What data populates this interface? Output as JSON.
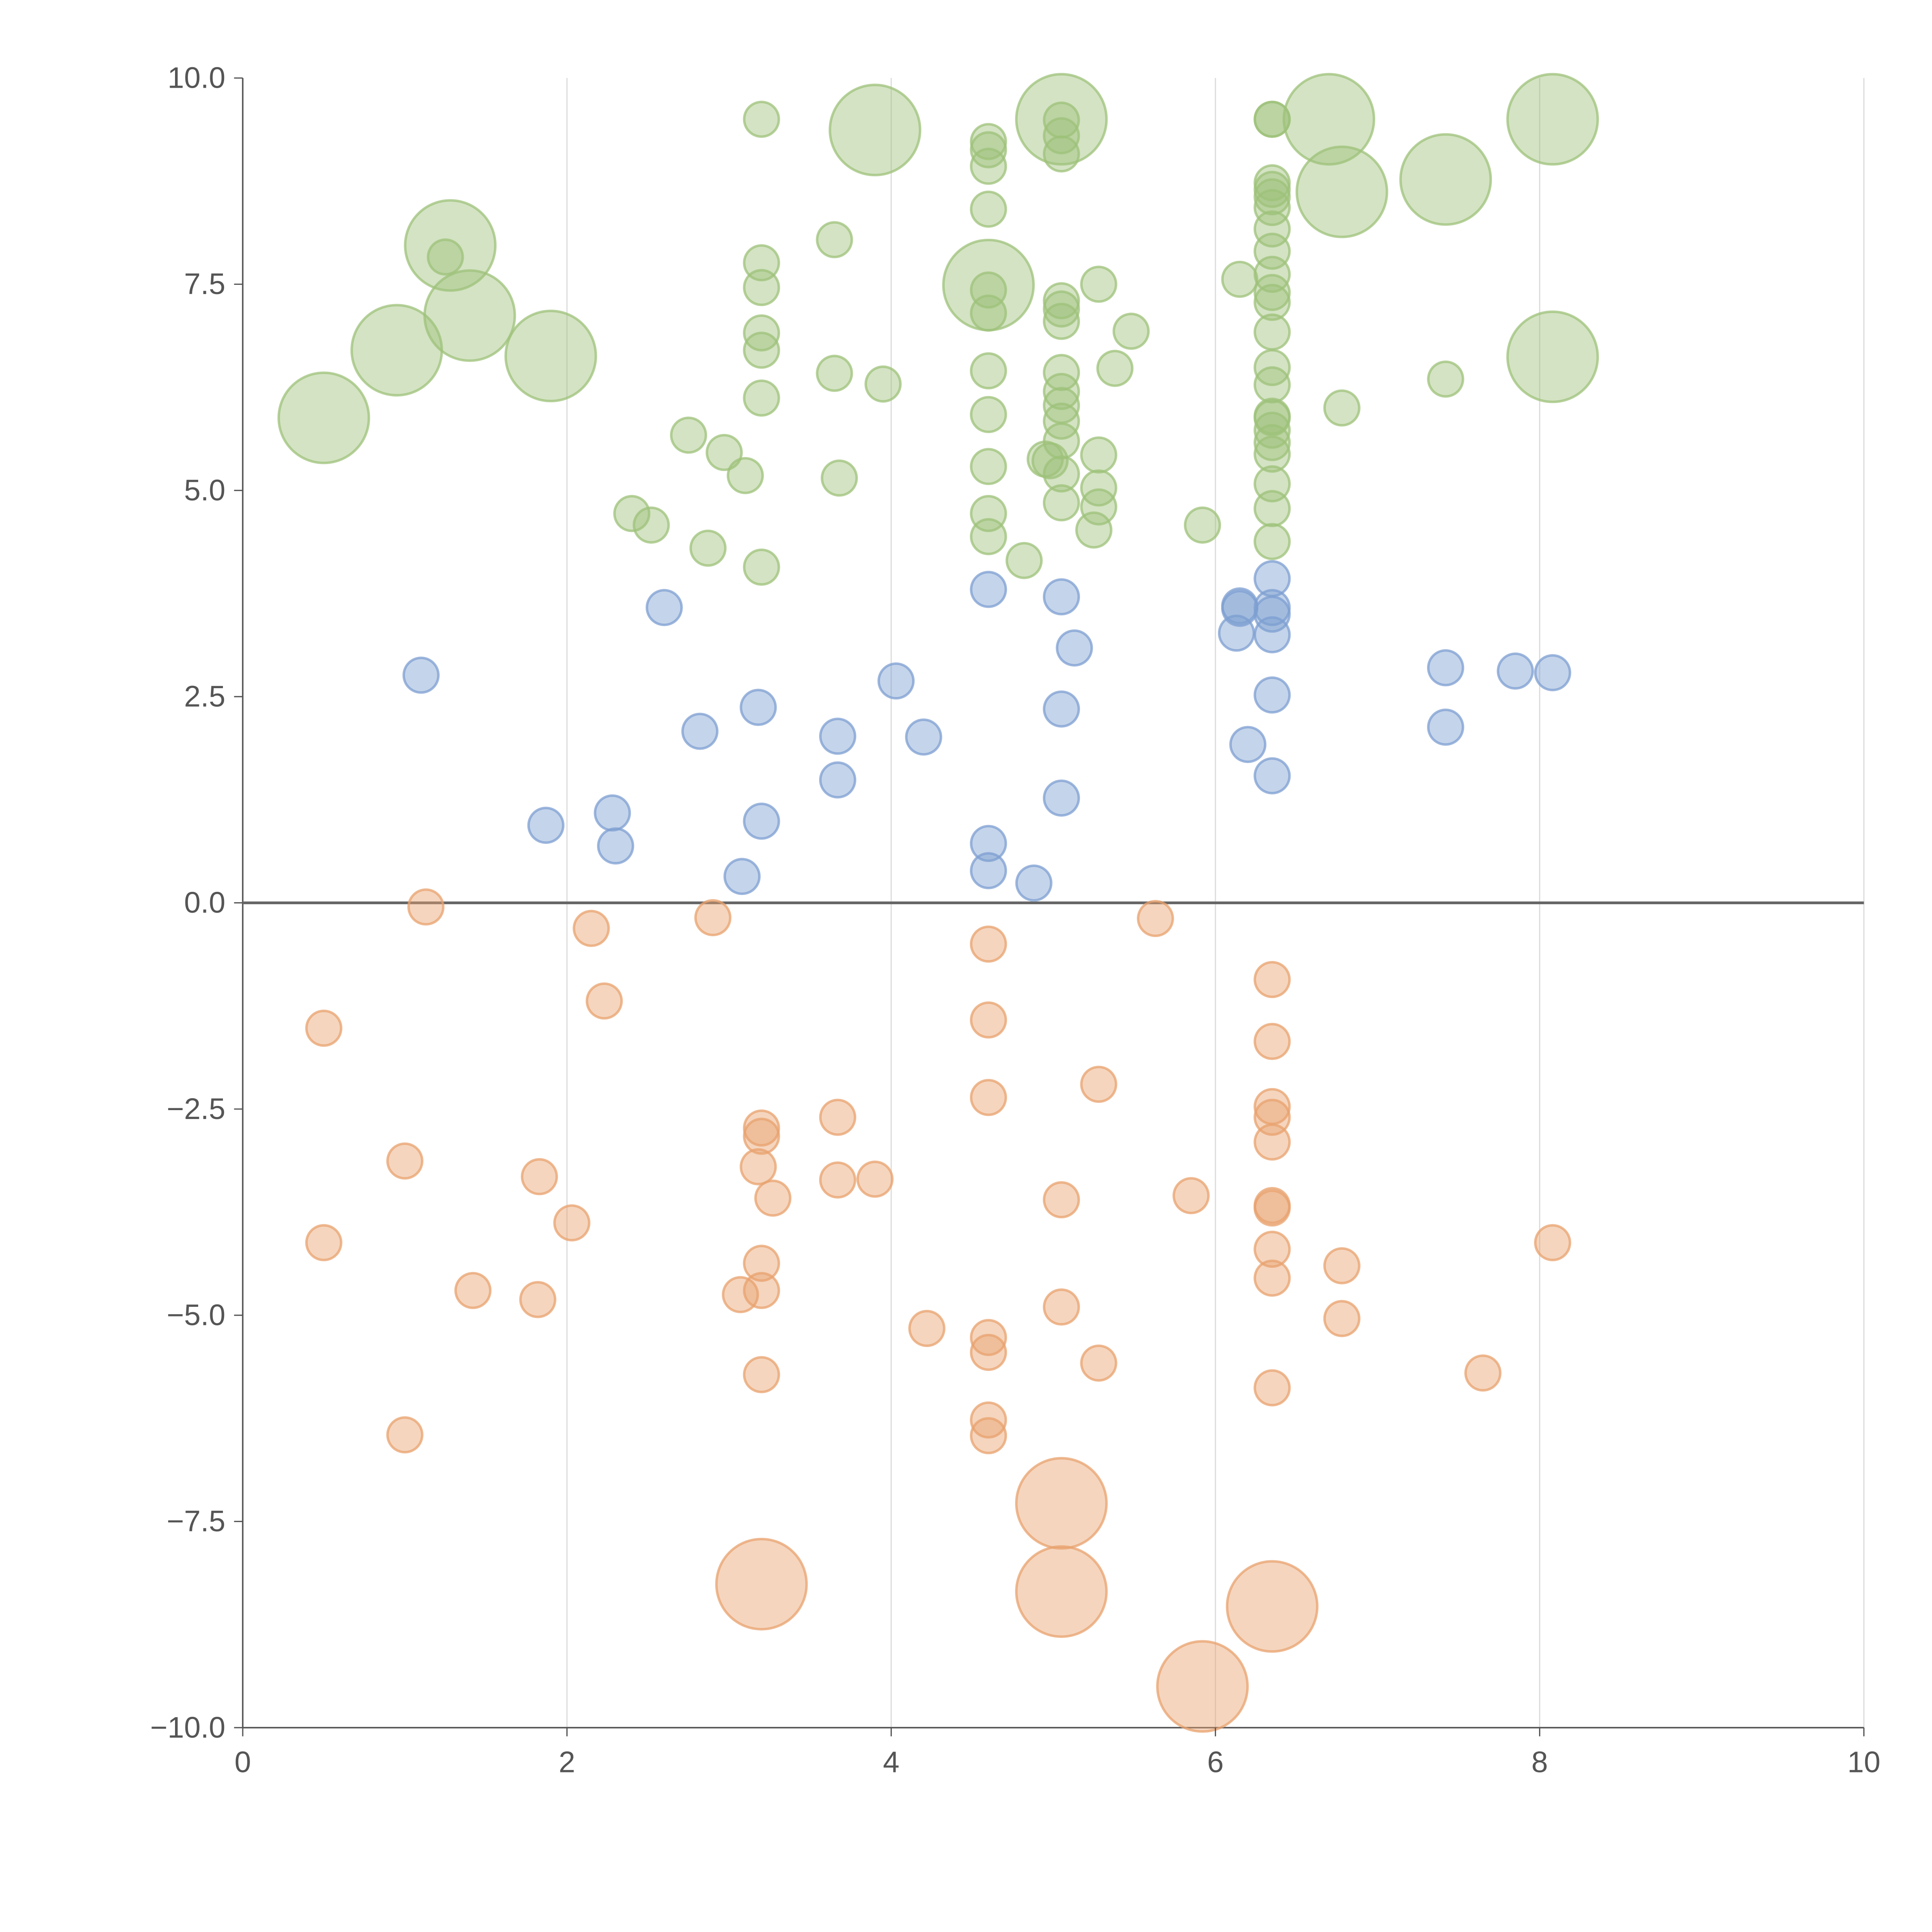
{
  "chart_data": {
    "type": "scatter",
    "title": "",
    "xlabel": "",
    "ylabel": "",
    "xlim": [
      0,
      10
    ],
    "ylim": [
      -10,
      10
    ],
    "x_ticks": [
      "0",
      "2",
      "4",
      "6",
      "8",
      "10"
    ],
    "y_ticks": [
      "−10.0",
      "−7.5",
      "−5.0",
      "−2.5",
      "0.0",
      "2.5",
      "5.0",
      "7.5",
      "10.0"
    ],
    "x_tick_values": [
      0,
      2,
      4,
      6,
      8,
      10
    ],
    "y_tick_values": [
      -10,
      -7.5,
      -5,
      -2.5,
      0,
      2.5,
      5,
      7.5,
      10
    ],
    "vertical_grid": true,
    "horizontal_grid": false,
    "zero_line": true,
    "legend": "none",
    "colors": {
      "green": "#9dc27a",
      "blue": "#7d9fd1",
      "orange": "#e8a26e",
      "axis": "#555555",
      "grid": "#dddddd",
      "tick_text": "#555555"
    },
    "series": [
      {
        "color_key": "green",
        "points": [
          [
            0.5,
            5.88
          ],
          [
            0.95,
            6.7
          ],
          [
            1.28,
            7.97
          ],
          [
            1.4,
            7.12
          ],
          [
            1.9,
            6.63
          ],
          [
            1.25,
            7.83
          ],
          [
            2.4,
            4.72
          ],
          [
            2.52,
            4.58
          ],
          [
            2.75,
            5.67
          ],
          [
            2.87,
            4.3
          ],
          [
            2.97,
            5.46
          ],
          [
            3.1,
            5.18
          ],
          [
            3.2,
            4.07
          ],
          [
            3.2,
            6.12
          ],
          [
            3.2,
            6.7
          ],
          [
            3.2,
            6.91
          ],
          [
            3.2,
            7.46
          ],
          [
            3.2,
            7.76
          ],
          [
            3.2,
            9.5
          ],
          [
            3.65,
            8.04
          ],
          [
            3.65,
            6.42
          ],
          [
            3.68,
            5.15
          ],
          [
            3.9,
            9.37
          ],
          [
            3.95,
            6.29
          ],
          [
            4.6,
            4.44
          ],
          [
            4.6,
            4.72
          ],
          [
            4.6,
            5.29
          ],
          [
            4.6,
            5.92
          ],
          [
            4.6,
            6.45
          ],
          [
            4.6,
            7.15
          ],
          [
            4.6,
            7.43
          ],
          [
            4.6,
            7.49
          ],
          [
            4.6,
            8.41
          ],
          [
            4.6,
            8.93
          ],
          [
            4.6,
            9.13
          ],
          [
            4.6,
            9.23
          ],
          [
            4.82,
            4.15
          ],
          [
            4.95,
            5.38
          ],
          [
            4.98,
            5.36
          ],
          [
            5.05,
            4.85
          ],
          [
            5.05,
            5.2
          ],
          [
            5.05,
            5.6
          ],
          [
            5.05,
            5.84
          ],
          [
            5.05,
            6.03
          ],
          [
            5.05,
            6.2
          ],
          [
            5.05,
            6.43
          ],
          [
            5.05,
            7.05
          ],
          [
            5.05,
            7.2
          ],
          [
            5.05,
            7.3
          ],
          [
            5.05,
            9.08
          ],
          [
            5.05,
            9.3
          ],
          [
            5.05,
            9.49
          ],
          [
            5.05,
            9.5
          ],
          [
            5.25,
            4.52
          ],
          [
            5.28,
            4.8
          ],
          [
            5.28,
            5.03
          ],
          [
            5.28,
            5.43
          ],
          [
            5.28,
            7.5
          ],
          [
            5.38,
            6.48
          ],
          [
            5.48,
            6.93
          ],
          [
            5.92,
            4.58
          ],
          [
            6.15,
            7.56
          ],
          [
            6.35,
            4.38
          ],
          [
            6.35,
            4.78
          ],
          [
            6.35,
            5.08
          ],
          [
            6.35,
            5.44
          ],
          [
            6.35,
            5.58
          ],
          [
            6.35,
            5.73
          ],
          [
            6.35,
            5.88
          ],
          [
            6.35,
            5.9
          ],
          [
            6.35,
            6.28
          ],
          [
            6.35,
            6.49
          ],
          [
            6.35,
            6.92
          ],
          [
            6.35,
            7.28
          ],
          [
            6.35,
            7.4
          ],
          [
            6.35,
            7.62
          ],
          [
            6.35,
            7.9
          ],
          [
            6.35,
            8.17
          ],
          [
            6.35,
            8.43
          ],
          [
            6.35,
            8.56
          ],
          [
            6.35,
            8.65
          ],
          [
            6.35,
            8.73
          ],
          [
            6.35,
            9.5
          ],
          [
            6.35,
            9.5
          ],
          [
            6.7,
            9.5
          ],
          [
            6.78,
            8.62
          ],
          [
            6.78,
            6.0
          ],
          [
            7.42,
            6.35
          ],
          [
            7.42,
            8.77
          ],
          [
            8.08,
            9.5
          ],
          [
            8.08,
            6.62
          ]
        ],
        "large_sizes": {
          "0": 2.6,
          "1": 2.6,
          "2": 2.6,
          "3": 2.6,
          "4": 2.6,
          "22": 2.6,
          "31": 2.6,
          "52": 2.6,
          "84": 2.6,
          "85": 2.6,
          "88": 2.6,
          "89": 2.6,
          "90": 2.6
        }
      },
      {
        "color_key": "blue",
        "points": [
          [
            1.1,
            2.76
          ],
          [
            1.87,
            0.94
          ],
          [
            2.28,
            1.09
          ],
          [
            2.3,
            0.69
          ],
          [
            2.6,
            3.58
          ],
          [
            2.82,
            2.08
          ],
          [
            3.08,
            0.32
          ],
          [
            3.18,
            2.37
          ],
          [
            3.2,
            0.99
          ],
          [
            3.67,
            2.02
          ],
          [
            3.67,
            1.49
          ],
          [
            4.03,
            2.69
          ],
          [
            4.2,
            2.01
          ],
          [
            4.6,
            3.8
          ],
          [
            4.6,
            0.72
          ],
          [
            4.6,
            0.39
          ],
          [
            4.88,
            0.24
          ],
          [
            5.05,
            3.71
          ],
          [
            5.05,
            2.35
          ],
          [
            5.05,
            1.27
          ],
          [
            5.13,
            3.09
          ],
          [
            6.13,
            3.27
          ],
          [
            6.15,
            3.6
          ],
          [
            6.15,
            3.57
          ],
          [
            6.2,
            1.92
          ],
          [
            6.35,
            3.93
          ],
          [
            6.35,
            3.58
          ],
          [
            6.35,
            3.5
          ],
          [
            6.35,
            3.25
          ],
          [
            6.35,
            2.52
          ],
          [
            6.35,
            1.54
          ],
          [
            7.42,
            2.85
          ],
          [
            7.42,
            2.13
          ],
          [
            7.85,
            2.81
          ],
          [
            8.08,
            2.79
          ]
        ],
        "large_sizes": {}
      },
      {
        "color_key": "orange",
        "points": [
          [
            0.5,
            -1.52
          ],
          [
            0.5,
            -4.12
          ],
          [
            1.0,
            -6.45
          ],
          [
            1.0,
            -3.13
          ],
          [
            1.13,
            -0.05
          ],
          [
            1.42,
            -4.7
          ],
          [
            1.82,
            -4.81
          ],
          [
            1.83,
            -3.32
          ],
          [
            2.03,
            -3.88
          ],
          [
            2.15,
            -0.31
          ],
          [
            2.23,
            -1.19
          ],
          [
            2.9,
            -0.18
          ],
          [
            3.07,
            -4.75
          ],
          [
            3.18,
            -3.2
          ],
          [
            3.2,
            -2.73
          ],
          [
            3.2,
            -2.83
          ],
          [
            3.2,
            -4.37
          ],
          [
            3.2,
            -4.7
          ],
          [
            3.2,
            -5.72
          ],
          [
            3.2,
            -8.26
          ],
          [
            3.27,
            -3.58
          ],
          [
            3.67,
            -2.6
          ],
          [
            3.67,
            -3.36
          ],
          [
            3.9,
            -3.35
          ],
          [
            4.22,
            -5.16
          ],
          [
            4.6,
            -0.5
          ],
          [
            4.6,
            -1.42
          ],
          [
            4.6,
            -2.36
          ],
          [
            4.6,
            -5.27
          ],
          [
            4.6,
            -5.45
          ],
          [
            4.6,
            -6.27
          ],
          [
            4.6,
            -6.46
          ],
          [
            5.05,
            -3.6
          ],
          [
            5.05,
            -4.9
          ],
          [
            5.05,
            -7.28
          ],
          [
            5.05,
            -8.35
          ],
          [
            5.28,
            -2.2
          ],
          [
            5.28,
            -5.58
          ],
          [
            5.63,
            -0.19
          ],
          [
            5.85,
            -3.55
          ],
          [
            5.92,
            -9.5
          ],
          [
            6.35,
            -0.93
          ],
          [
            6.35,
            -1.68
          ],
          [
            6.35,
            -2.47
          ],
          [
            6.35,
            -2.6
          ],
          [
            6.35,
            -2.9
          ],
          [
            6.35,
            -3.67
          ],
          [
            6.35,
            -3.7
          ],
          [
            6.35,
            -4.2
          ],
          [
            6.35,
            -4.55
          ],
          [
            6.35,
            -5.88
          ],
          [
            6.35,
            -8.53
          ],
          [
            6.78,
            -4.4
          ],
          [
            6.78,
            -5.04
          ],
          [
            7.65,
            -5.7
          ],
          [
            8.08,
            -4.12
          ]
        ],
        "large_sizes": {
          "19": 2.6,
          "34": 2.6,
          "35": 2.6,
          "40": 2.6,
          "51": 2.6
        }
      }
    ]
  }
}
